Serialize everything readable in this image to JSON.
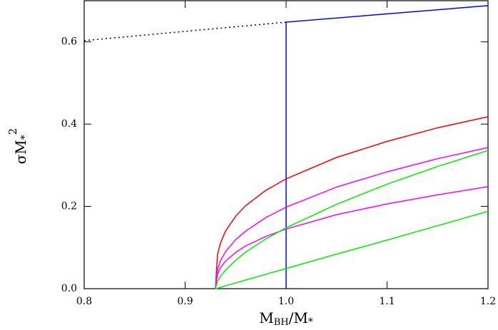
{
  "chart_data": {
    "type": "line",
    "xlabel": [
      "M",
      "BH",
      "/M",
      "*"
    ],
    "ylabel": [
      "σM",
      "*",
      "2"
    ],
    "xlim": [
      0.8,
      1.2
    ],
    "ylim": [
      0,
      0.7
    ],
    "xticks": [
      0.8,
      0.9,
      {
        "value": 1,
        "label": "1.0"
      },
      1.1,
      1.2
    ],
    "yticks": [
      {
        "value": 0,
        "label": "0.0"
      },
      0.2,
      0.4,
      0.6
    ],
    "series": [
      {
        "color": "#000000",
        "dash": "dotted",
        "x": [
          0.8,
          1.0
        ],
        "values": [
          0.603,
          0.648
        ]
      },
      {
        "color": "#0000ff",
        "x": [
          1.0,
          1.0,
          1.2
        ],
        "values": [
          0,
          0.648,
          0.688
        ]
      },
      {
        "color": "#ff0000",
        "x": [
          0.93,
          0.932,
          0.935,
          0.94,
          0.95,
          0.96,
          0.98,
          1.0,
          1.05,
          1.1,
          1.15,
          1.2
        ],
        "values": [
          0,
          0.082,
          0.111,
          0.14,
          0.176,
          0.202,
          0.239,
          0.267,
          0.319,
          0.358,
          0.391,
          0.418
        ]
      },
      {
        "color": "#ff00ff",
        "x": [
          0.93,
          0.932,
          0.935,
          0.94,
          0.95,
          0.96,
          0.98,
          1.0,
          1.05,
          1.1,
          1.15,
          1.2
        ],
        "values": [
          0,
          0.047,
          0.068,
          0.09,
          0.119,
          0.14,
          0.173,
          0.198,
          0.247,
          0.284,
          0.316,
          0.343
        ]
      },
      {
        "color": "#ff00ff",
        "x": [
          0.93,
          0.932,
          0.935,
          0.94,
          0.95,
          0.96,
          0.98,
          1.0,
          1.05,
          1.1,
          1.15,
          1.2
        ],
        "values": [
          0,
          0.035,
          0.051,
          0.067,
          0.088,
          0.104,
          0.127,
          0.145,
          0.18,
          0.206,
          0.228,
          0.248
        ]
      },
      {
        "color": "#00ee00",
        "x": [
          0.93,
          0.932,
          0.935,
          0.94,
          0.95,
          0.96,
          0.98,
          1.0,
          1.05,
          1.1,
          1.15,
          1.2
        ],
        "values": [
          0,
          0.017,
          0.03,
          0.045,
          0.069,
          0.089,
          0.121,
          0.148,
          0.205,
          0.254,
          0.297,
          0.336
        ]
      },
      {
        "color": "#00ee00",
        "x": [
          0.93,
          0.932,
          0.935,
          0.94,
          0.95,
          0.96,
          0.98,
          1.0,
          1.05,
          1.1,
          1.15,
          1.2
        ],
        "values": [
          0,
          0.001,
          0.003,
          0.007,
          0.014,
          0.021,
          0.035,
          0.049,
          0.084,
          0.118,
          0.153,
          0.188
        ]
      }
    ]
  }
}
